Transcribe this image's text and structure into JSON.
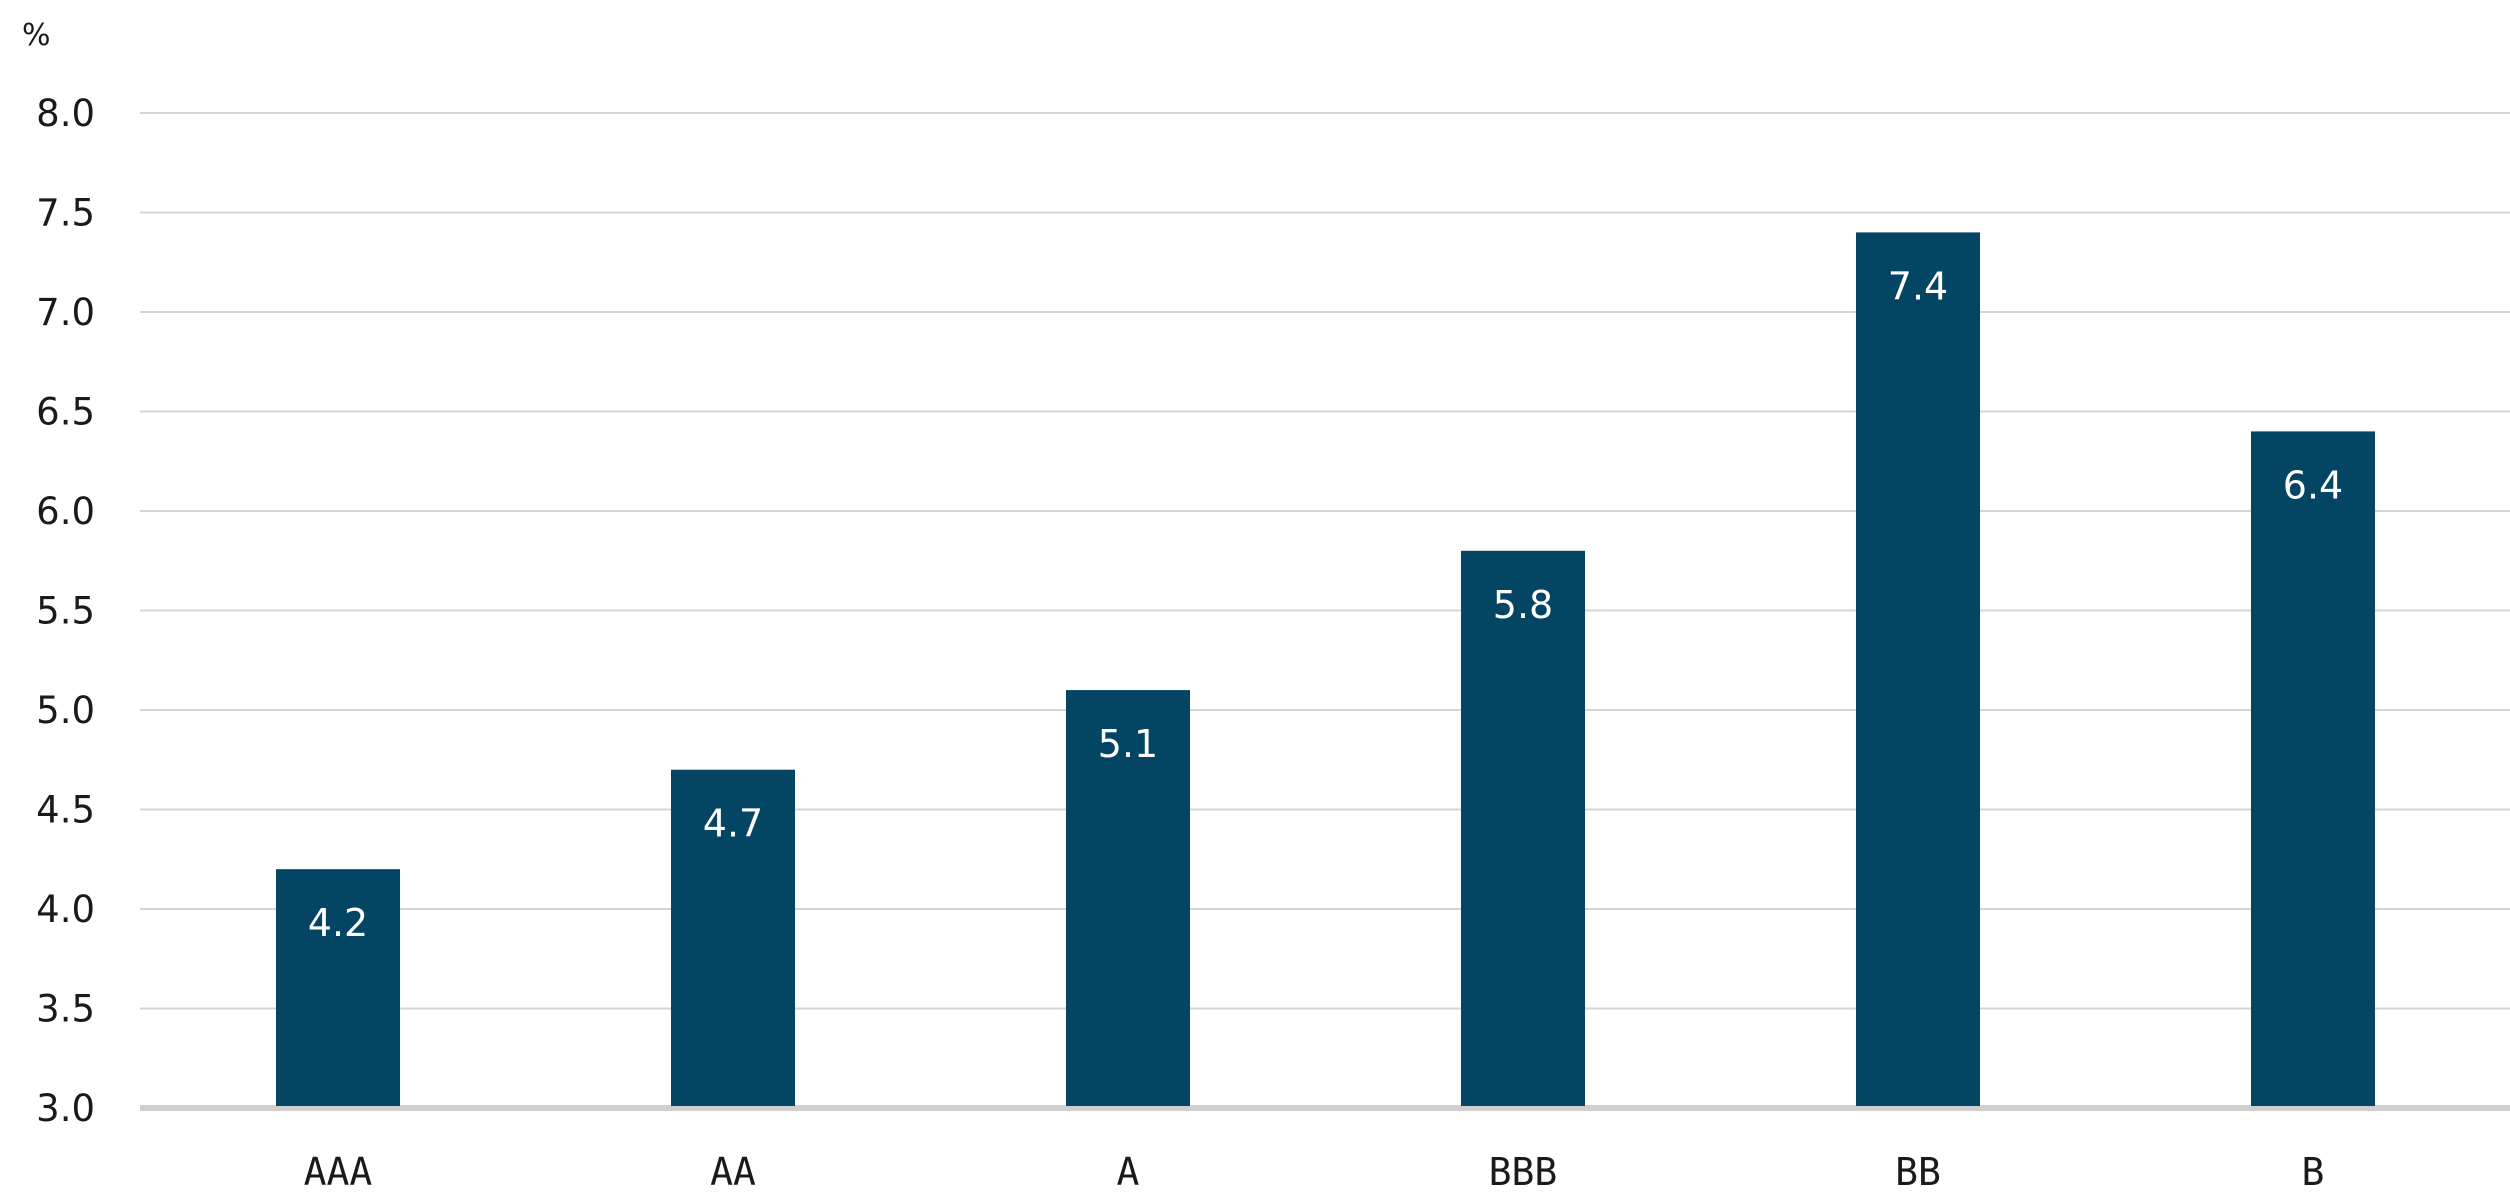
{
  "chart_data": {
    "type": "bar",
    "title": "",
    "xlabel": "",
    "ylabel": "%",
    "categories": [
      "AAA",
      "AA",
      "A",
      "BBB",
      "BB",
      "B"
    ],
    "values": [
      4.2,
      4.7,
      5.1,
      5.8,
      7.4,
      6.4
    ],
    "data_labels": [
      "4.2",
      "4.7",
      "5.1",
      "5.8",
      "7.4",
      "6.4"
    ],
    "ylim": [
      3.0,
      8.0
    ],
    "yticks": [
      "3.0",
      "3.5",
      "4.0",
      "4.5",
      "5.0",
      "5.5",
      "6.0",
      "6.5",
      "7.0",
      "7.5",
      "8.0"
    ],
    "grid": true,
    "legend": "none",
    "colors": {
      "bar": "#044563",
      "grid": "#d4d4d4",
      "baseline": "#cfcfcf",
      "text": "#1a1a1a",
      "data_label": "#ffffff"
    }
  }
}
